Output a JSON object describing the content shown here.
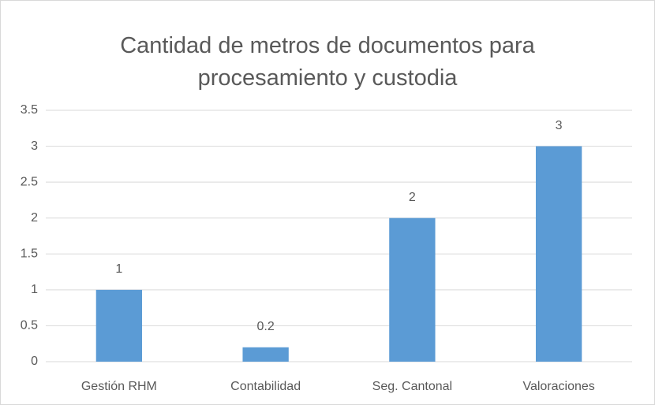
{
  "chart_data": {
    "type": "bar",
    "title": "Cantidad de metros de documentos para procesamiento y custodia",
    "categories": [
      "Gestión RHM",
      "Contabilidad",
      "Seg. Cantonal",
      "Valoraciones"
    ],
    "values": [
      1,
      0.2,
      2,
      3
    ],
    "color": "#5b9bd5",
    "ylim": [
      0,
      3.5
    ],
    "yticks": [
      0,
      0.5,
      1,
      1.5,
      2,
      2.5,
      3,
      3.5
    ],
    "grid": true
  }
}
